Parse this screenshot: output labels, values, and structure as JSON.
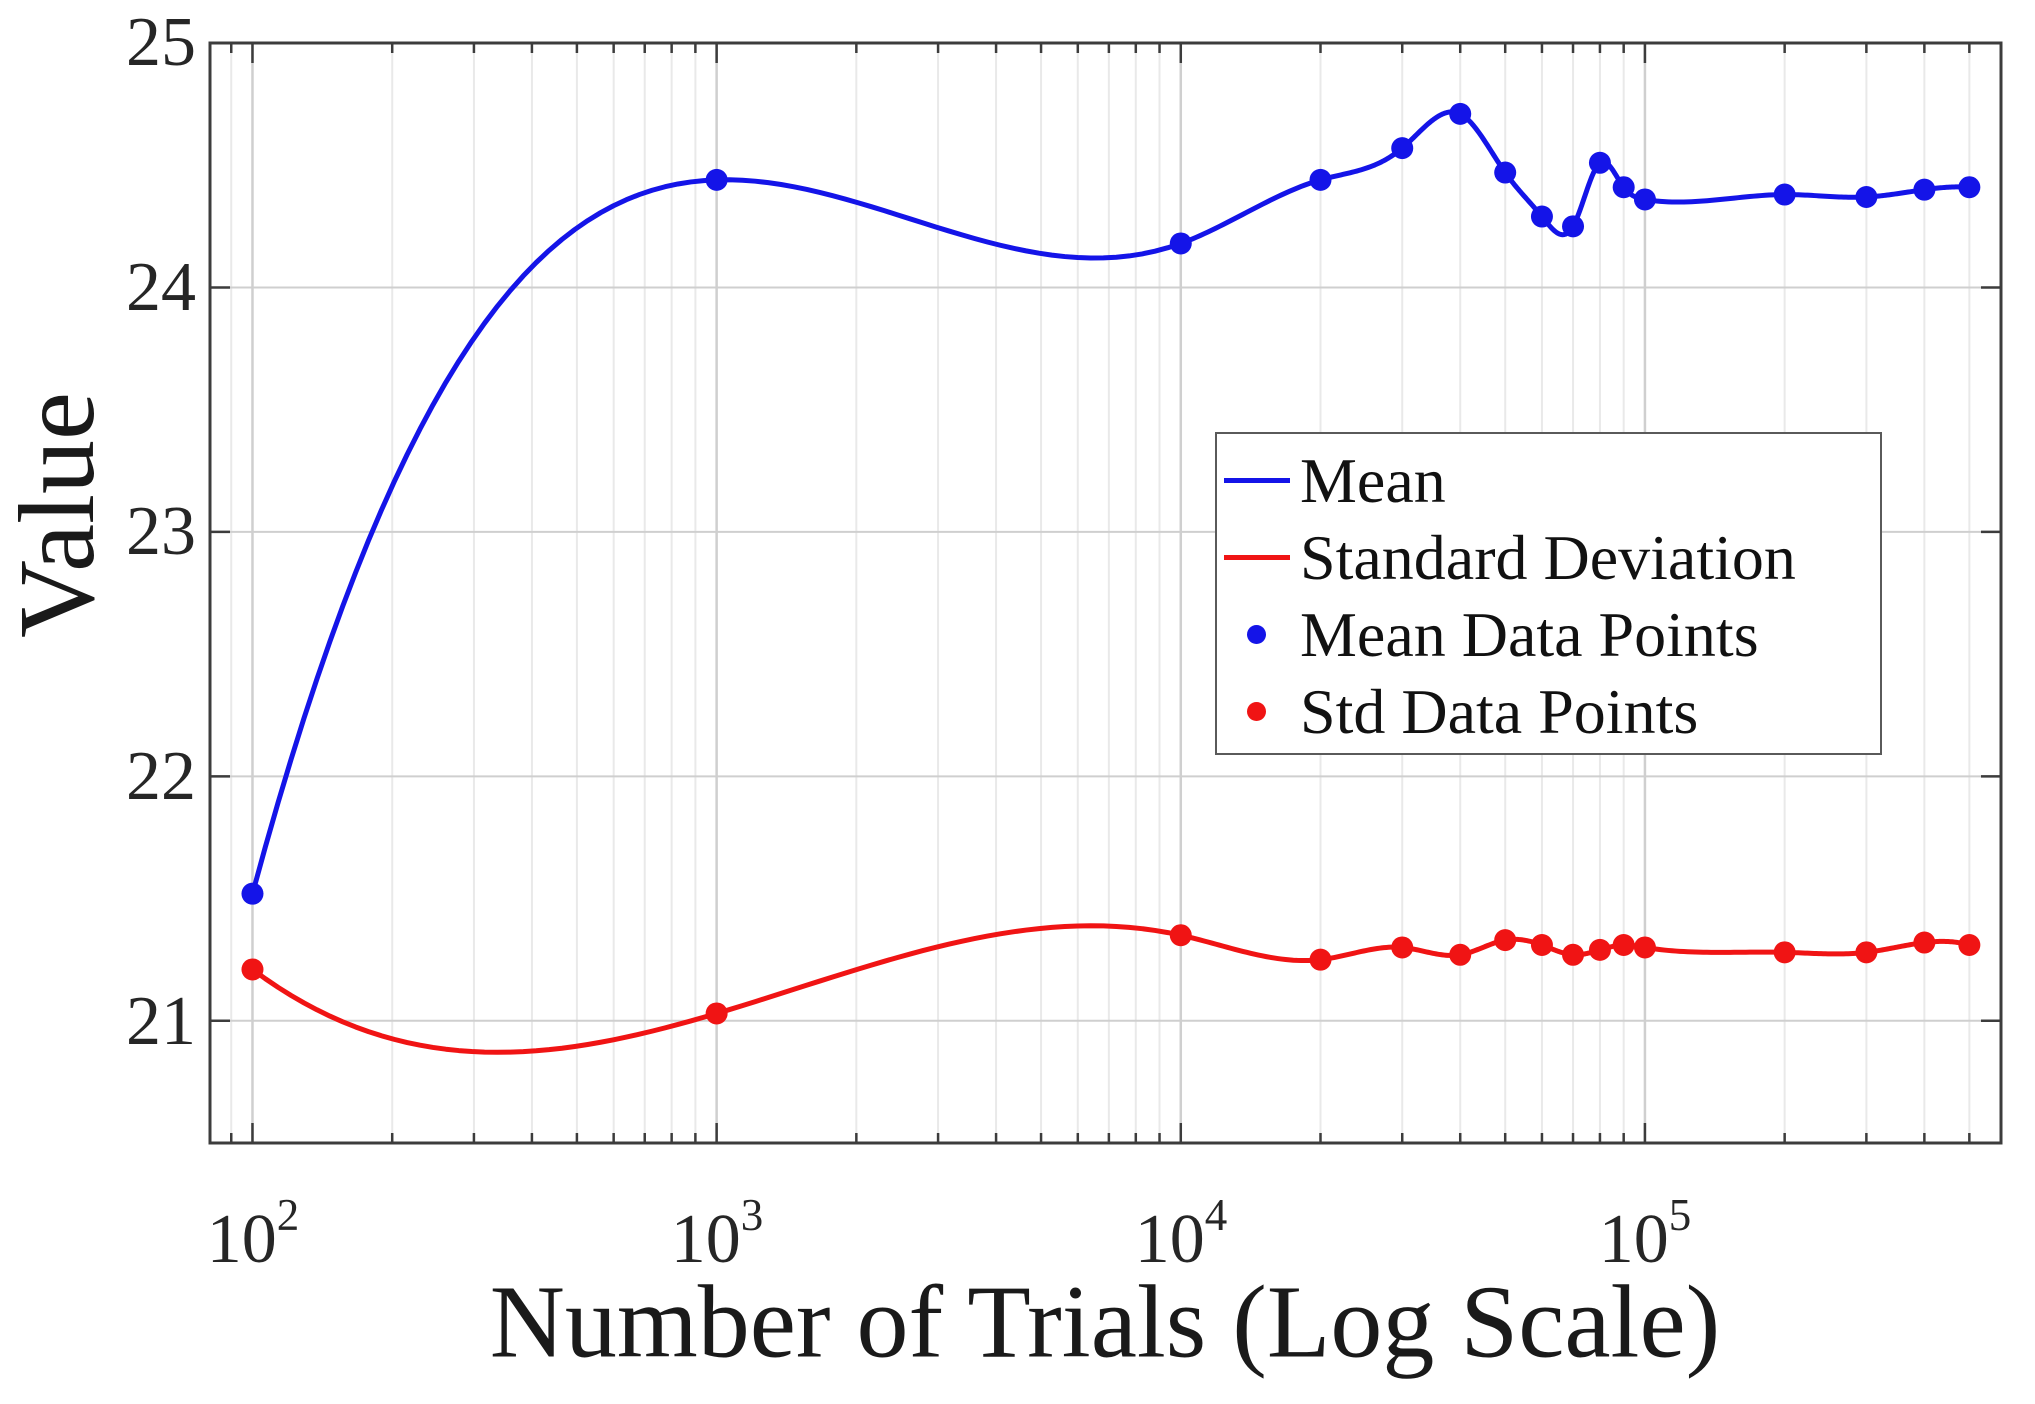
{
  "figure": {
    "ylabel": "Value",
    "xlabel": "Number of Trials (Log Scale)",
    "yticks": [
      "25",
      "24",
      "23",
      "22",
      "21"
    ],
    "xticks": [
      {
        "base": "10",
        "exp": "2"
      },
      {
        "base": "10",
        "exp": "3"
      },
      {
        "base": "10",
        "exp": "4"
      },
      {
        "base": "10",
        "exp": "5"
      }
    ]
  },
  "legend": {
    "items": [
      {
        "label": "Mean"
      },
      {
        "label": "Standard Deviation"
      },
      {
        "label": "Mean Data Points"
      },
      {
        "label": "Std Data Points"
      }
    ]
  },
  "chart_data": {
    "type": "line",
    "title": "",
    "xlabel": "Number of Trials (Log Scale)",
    "ylabel": "Value",
    "x_scale": "log",
    "xlim": [
      81,
      585000
    ],
    "ylim": [
      20.5,
      25
    ],
    "grid": true,
    "legend_position": "upper-right-inside",
    "x": [
      100,
      1000,
      10000,
      20000,
      30000,
      40000,
      50000,
      60000,
      70000,
      80000,
      90000,
      100000,
      200000,
      300000,
      400000,
      500000
    ],
    "series": [
      {
        "name": "Mean",
        "color": "#1414e8",
        "marker": "circle",
        "interpolation": "cubic-spline",
        "values": [
          21.52,
          24.44,
          24.18,
          24.44,
          24.57,
          24.71,
          24.47,
          24.29,
          24.25,
          24.51,
          24.41,
          24.36,
          24.38,
          24.37,
          24.4,
          24.41
        ]
      },
      {
        "name": "Standard Deviation",
        "color": "#f01414",
        "marker": "circle",
        "interpolation": "cubic-spline",
        "values": [
          21.21,
          21.03,
          21.35,
          21.25,
          21.3,
          21.27,
          21.33,
          21.31,
          21.27,
          21.29,
          21.31,
          21.3,
          21.28,
          21.28,
          21.32,
          21.31
        ]
      }
    ],
    "yticks_values": [
      21,
      22,
      23,
      24,
      25
    ],
    "xticks_major_values": [
      100,
      1000,
      10000,
      100000
    ],
    "colors": {
      "axis": "#3c3c3c",
      "grid_major": "#cfcfcf",
      "grid_minor": "#e9e9e9"
    }
  }
}
